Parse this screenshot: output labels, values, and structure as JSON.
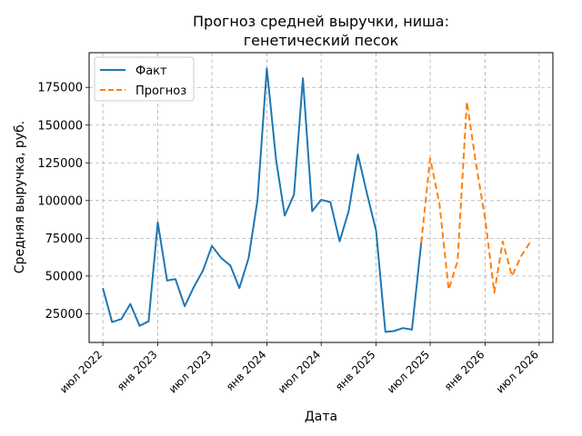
{
  "chart_data": {
    "type": "line",
    "title_lines": [
      "Прогноз средней выручки, ниша:",
      "генетический песок"
    ],
    "xlabel": "Дата",
    "ylabel": "Средняя выручка, руб.",
    "xlim": [
      "2022-05-16",
      "2026-08-16"
    ],
    "ylim": [
      6000,
      198000
    ],
    "grid": true,
    "legend_position": "top-left",
    "x_ticks": [
      {
        "date": "2022-07-01",
        "label": "июл 2022"
      },
      {
        "date": "2023-01-01",
        "label": "янв 2023"
      },
      {
        "date": "2023-07-01",
        "label": "июл 2023"
      },
      {
        "date": "2024-01-01",
        "label": "янв 2024"
      },
      {
        "date": "2024-07-01",
        "label": "июл 2024"
      },
      {
        "date": "2025-01-01",
        "label": "янв 2025"
      },
      {
        "date": "2025-07-01",
        "label": "июл 2025"
      },
      {
        "date": "2026-01-01",
        "label": "янв 2026"
      },
      {
        "date": "2026-07-01",
        "label": "июл 2026"
      }
    ],
    "y_ticks": [
      25000,
      50000,
      75000,
      100000,
      125000,
      150000,
      175000
    ],
    "series": [
      {
        "name": "Факт",
        "color": "#1f77b4",
        "style": "solid",
        "x": [
          "2022-07-01",
          "2022-08-01",
          "2022-09-01",
          "2022-10-01",
          "2022-11-01",
          "2022-12-01",
          "2023-01-01",
          "2023-02-01",
          "2023-03-01",
          "2023-04-01",
          "2023-05-01",
          "2023-06-01",
          "2023-07-01",
          "2023-08-01",
          "2023-09-01",
          "2023-10-01",
          "2023-11-01",
          "2023-12-01",
          "2024-01-01",
          "2024-02-01",
          "2024-03-01",
          "2024-04-01",
          "2024-05-01",
          "2024-06-01",
          "2024-07-01",
          "2024-08-01",
          "2024-09-01",
          "2024-10-01",
          "2024-11-01",
          "2024-12-01",
          "2025-01-01",
          "2025-02-01",
          "2025-03-01",
          "2025-04-01",
          "2025-05-01",
          "2025-06-01"
        ],
        "y": [
          42000,
          19500,
          21500,
          31500,
          17000,
          20000,
          85500,
          47000,
          48000,
          30000,
          42500,
          53500,
          70000,
          62000,
          57000,
          42000,
          62000,
          100500,
          187500,
          127000,
          90000,
          104000,
          181000,
          93000,
          100500,
          99000,
          73000,
          93000,
          130500,
          105000,
          80000,
          13000,
          13500,
          15500,
          14500,
          72000
        ]
      },
      {
        "name": "Прогноз",
        "color": "#ff7f0e",
        "style": "dashed",
        "x": [
          "2025-06-01",
          "2025-07-01",
          "2025-08-01",
          "2025-09-01",
          "2025-10-01",
          "2025-11-01",
          "2025-12-01",
          "2026-01-01",
          "2026-02-01",
          "2026-03-01",
          "2026-04-01",
          "2026-05-01",
          "2026-06-01"
        ],
        "y": [
          72000,
          128000,
          98000,
          41000,
          60000,
          165500,
          125000,
          88000,
          39000,
          73000,
          50000,
          63000,
          72500
        ]
      }
    ]
  }
}
